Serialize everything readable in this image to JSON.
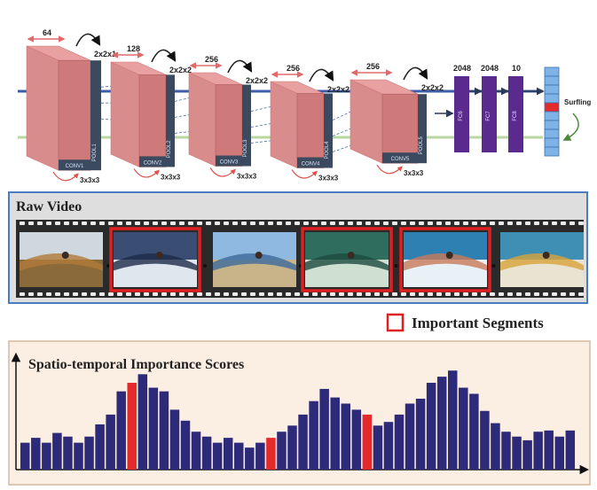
{
  "network": {
    "conv_blocks": [
      {
        "name": "CONV1",
        "pool": "POOL1",
        "channels": "64",
        "pool_size": "2x2x1",
        "kernel": "3x3x3"
      },
      {
        "name": "CONV2",
        "pool": "POOL2",
        "channels": "128",
        "pool_size": "2x2x2",
        "kernel": "3x3x3"
      },
      {
        "name": "CONV3",
        "pool": "POOL3",
        "channels": "256",
        "pool_size": "2x2x2",
        "kernel": "3x3x3"
      },
      {
        "name": "CONV4",
        "pool": "POOL4",
        "channels": "256",
        "pool_size": "2x2x2",
        "kernel": "3x3x3"
      },
      {
        "name": "CONV5",
        "pool": "POOL5",
        "channels": "256",
        "pool_size": "2x2x2",
        "kernel": "3x3x3"
      }
    ],
    "fc_layers": [
      {
        "name": "FC6",
        "size": "2048"
      },
      {
        "name": "FC7",
        "size": "2048"
      },
      {
        "name": "FC8",
        "size": "10"
      }
    ],
    "output_label": "Surfling"
  },
  "video": {
    "title": "Raw Video",
    "frames": [
      {
        "scene": "people-on-grass-beach",
        "important": false
      },
      {
        "scene": "surfer-in-wave-dark",
        "important": true
      },
      {
        "scene": "jeep-on-beach",
        "important": false
      },
      {
        "scene": "surfer-in-barrel-wave",
        "important": true
      },
      {
        "scene": "surfer-carving-wave",
        "important": true
      },
      {
        "scene": "surfer-closeup",
        "important": false
      }
    ]
  },
  "legend": {
    "label": "Important Segments",
    "color": "#e02020"
  },
  "chart_data": {
    "type": "bar",
    "title": "Spatio-temporal Importance Scores",
    "xlabel": "",
    "ylabel": "",
    "ylim": [
      0,
      1
    ],
    "bar_color": "#2d2a7a",
    "highlight_color": "#e42a2a",
    "values": [
      0.22,
      0.26,
      0.22,
      0.3,
      0.27,
      0.22,
      0.27,
      0.37,
      0.45,
      0.64,
      0.71,
      0.78,
      0.67,
      0.64,
      0.49,
      0.4,
      0.31,
      0.27,
      0.22,
      0.26,
      0.22,
      0.18,
      0.22,
      0.26,
      0.31,
      0.36,
      0.45,
      0.56,
      0.66,
      0.59,
      0.54,
      0.49,
      0.45,
      0.36,
      0.39,
      0.45,
      0.54,
      0.58,
      0.71,
      0.76,
      0.81,
      0.67,
      0.62,
      0.48,
      0.38,
      0.31,
      0.27,
      0.24,
      0.31,
      0.32,
      0.27,
      0.32
    ],
    "highlight_indices": [
      10,
      23,
      32
    ]
  }
}
